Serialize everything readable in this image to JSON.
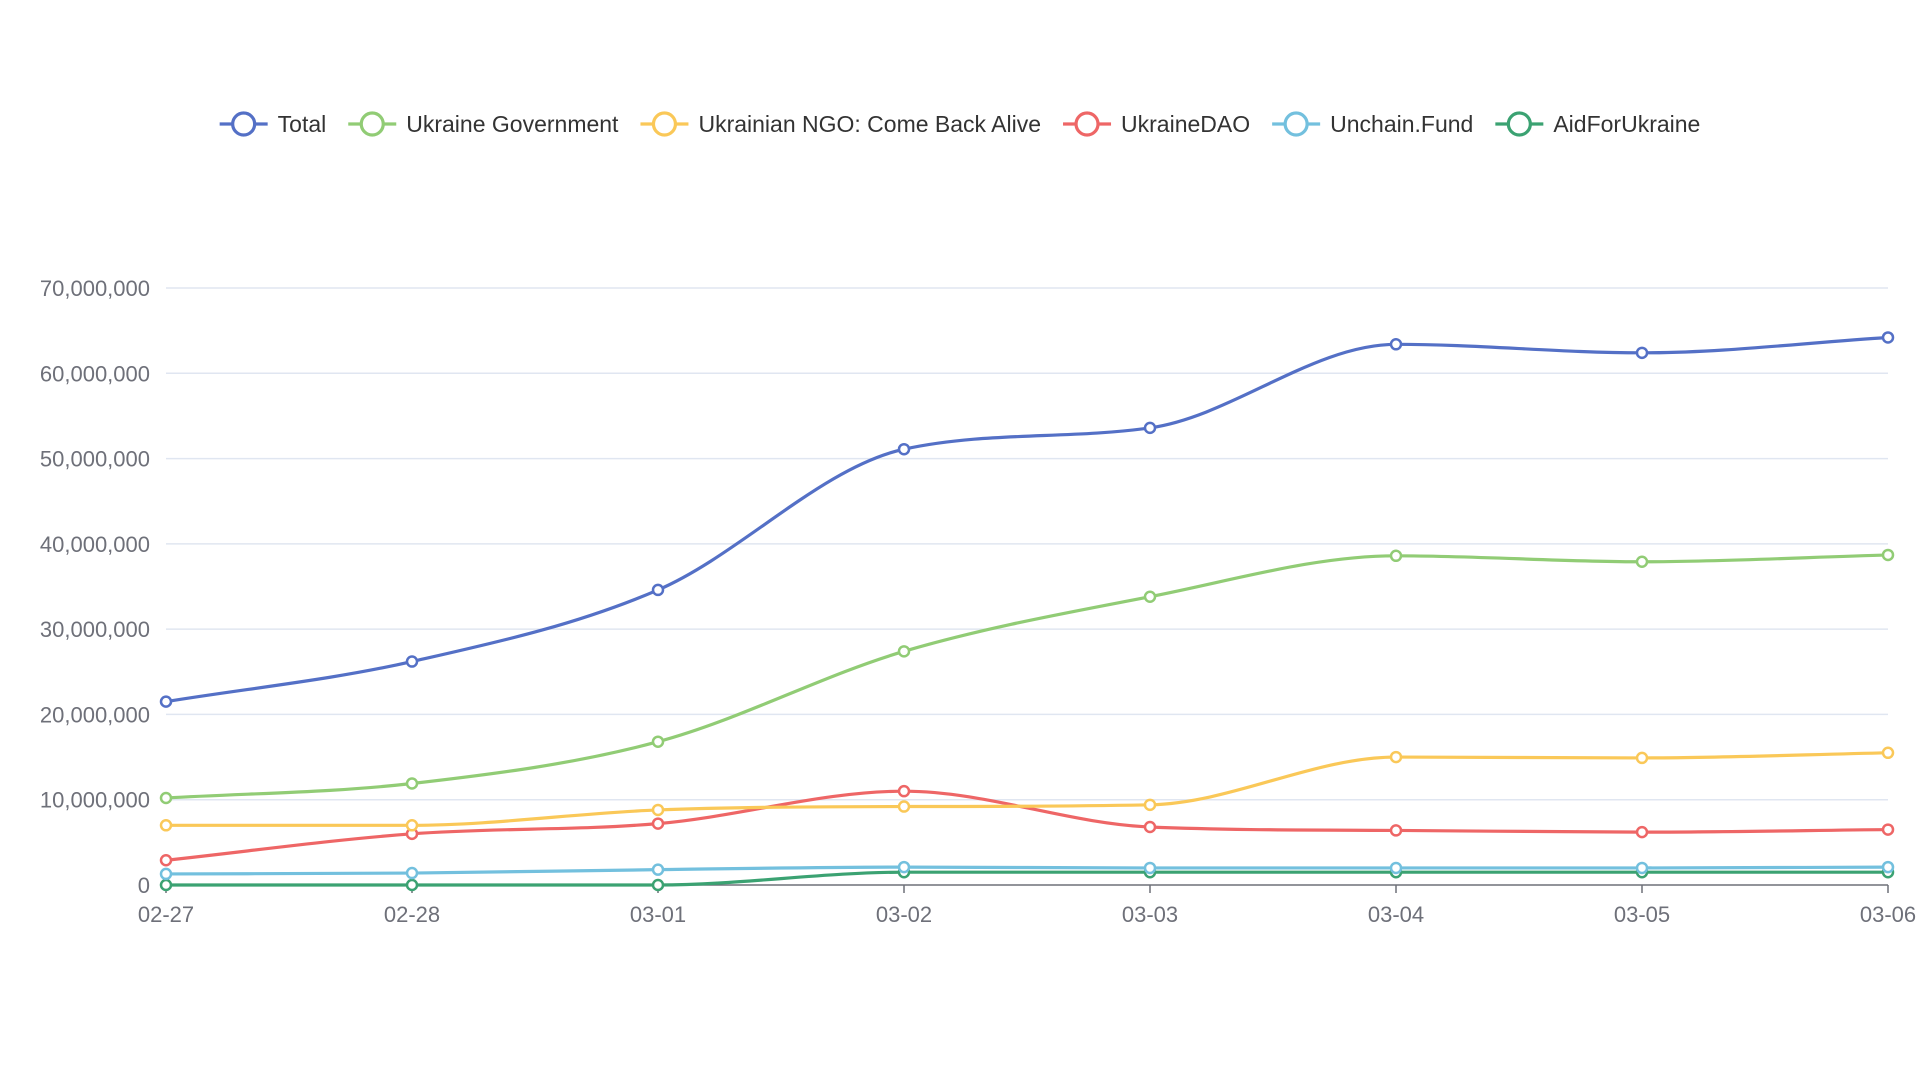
{
  "chart_data": {
    "type": "line",
    "smooth": true,
    "categories": [
      "02-27",
      "02-28",
      "03-01",
      "03-02",
      "03-03",
      "03-04",
      "03-05",
      "03-06"
    ],
    "ylim": [
      0,
      70000000
    ],
    "yticks": [
      0,
      10000000,
      20000000,
      30000000,
      40000000,
      50000000,
      60000000,
      70000000
    ],
    "ytick_labels": [
      "0",
      "10,000,000",
      "20,000,000",
      "30,000,000",
      "40,000,000",
      "50,000,000",
      "60,000,000",
      "70,000,000"
    ],
    "grid": "horizontal",
    "legend_position": "top",
    "series": [
      {
        "name": "Total",
        "color": "#5470c6",
        "values": [
          21500000,
          26200000,
          34600000,
          51100000,
          53600000,
          63400000,
          62400000,
          64200000
        ]
      },
      {
        "name": "Ukraine Government",
        "color": "#91cc75",
        "values": [
          10200000,
          11900000,
          16800000,
          27400000,
          33800000,
          38600000,
          37900000,
          38700000
        ]
      },
      {
        "name": "Ukrainian NGO: Come Back Alive",
        "color": "#fac858",
        "values": [
          7000000,
          7000000,
          8800000,
          9200000,
          9400000,
          15000000,
          14900000,
          15500000
        ]
      },
      {
        "name": "UkraineDAO",
        "color": "#ee6666",
        "values": [
          2900000,
          6000000,
          7200000,
          11000000,
          6800000,
          6400000,
          6200000,
          6500000
        ]
      },
      {
        "name": "Unchain.Fund",
        "color": "#73c0de",
        "values": [
          1300000,
          1400000,
          1800000,
          2100000,
          2000000,
          2000000,
          2000000,
          2100000
        ]
      },
      {
        "name": "AidForUkraine",
        "color": "#3ba272",
        "values": [
          0,
          0,
          0,
          1500000,
          1500000,
          1500000,
          1500000,
          1500000
        ]
      }
    ]
  }
}
